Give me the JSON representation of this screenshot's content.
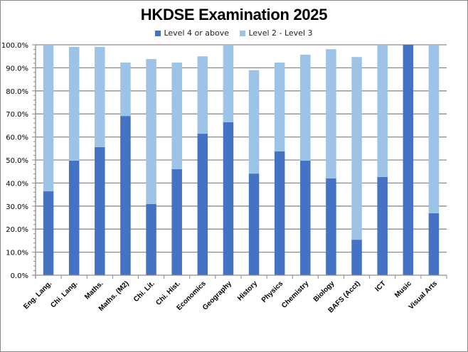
{
  "chart_data": {
    "type": "bar",
    "stacked": true,
    "title": "HKDSE Examination 2025",
    "xlabel": "",
    "ylabel": "",
    "ylim": [
      0,
      100
    ],
    "yticks": [
      "0.0%",
      "10.0%",
      "20.0%",
      "30.0%",
      "40.0%",
      "50.0%",
      "60.0%",
      "70.0%",
      "80.0%",
      "90.0%",
      "100.0%"
    ],
    "grid": true,
    "legend_position": "top",
    "categories": [
      "Eng. Lang.",
      "Chi. Lang.",
      "Maths.",
      "Maths. (M2)",
      "Chi. Lit.",
      "Chi. Hist.",
      "Economics",
      "Geography",
      "History",
      "Physics",
      "Chemistry",
      "Biology",
      "BAFS (Acct)",
      "ICT",
      "Music",
      "Visual Arts"
    ],
    "series": [
      {
        "name": "Level 4 or above",
        "color": "#4472c4",
        "values": [
          36.4,
          49.7,
          55.6,
          69.1,
          30.9,
          46.0,
          61.4,
          66.4,
          44.1,
          53.7,
          49.7,
          42.0,
          15.4,
          42.6,
          100.0,
          26.9
        ]
      },
      {
        "name": "Level 2 - Level 3",
        "color": "#9dc3e6",
        "values": [
          63.6,
          49.4,
          43.5,
          23.2,
          62.9,
          46.3,
          33.6,
          33.6,
          44.9,
          38.6,
          46.0,
          56.1,
          79.3,
          57.4,
          0.0,
          73.1
        ]
      }
    ]
  },
  "title": "HKDSE Examination 2025",
  "legend": [
    {
      "label": "Level 4 or above",
      "color": "#4472c4"
    },
    {
      "label": "Level 2 - Level 3",
      "color": "#9dc3e6"
    }
  ]
}
